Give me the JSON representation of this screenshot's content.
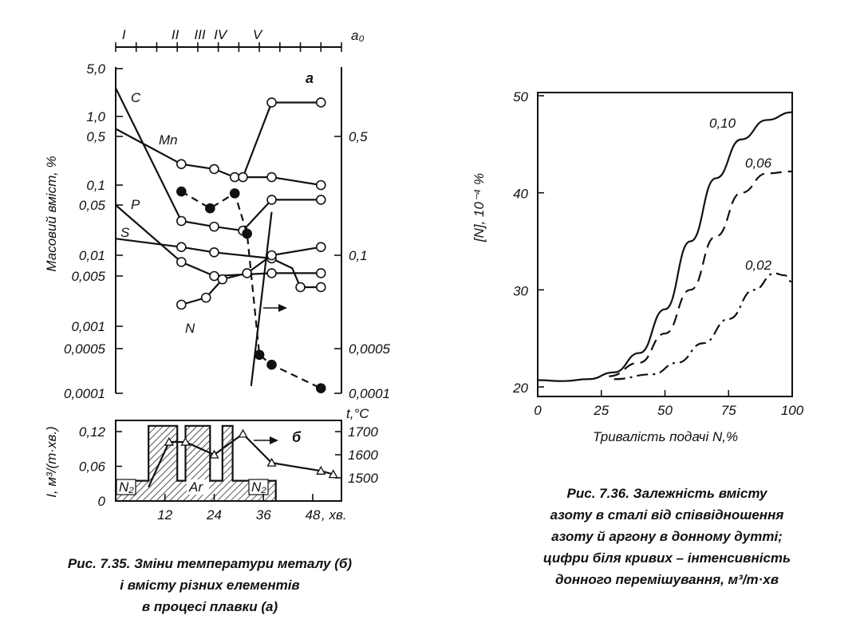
{
  "chart_data": [
    {
      "id": "fig735a",
      "type": "line",
      "panel_label": "а",
      "ylabel": "Масовий вміст, %",
      "top_axis_label": "a₀",
      "stage_labels": [
        "I",
        "II",
        "III",
        "IV",
        "V"
      ],
      "stage_positions": [
        2,
        14.5,
        20.5,
        25.5,
        34.5
      ],
      "left_ticks": [
        "5,0",
        "1,0",
        "0,5",
        "0,1",
        "0,05",
        "0,01",
        "0,005",
        "0,001",
        "0,0005",
        "0,0001"
      ],
      "right_ticks": [
        "0,5",
        "0,1",
        "0,0005",
        "0,0001"
      ],
      "series": [
        {
          "name": "C",
          "style": "solid",
          "marker": "open",
          "points": [
            [
              0,
              2.6
            ],
            [
              16,
              0.03
            ],
            [
              24,
              0.025
            ],
            [
              31,
              0.022
            ],
            [
              38,
              0.06
            ],
            [
              50,
              0.06
            ]
          ]
        },
        {
          "name": "Mn",
          "style": "solid",
          "marker": "open",
          "points": [
            [
              0,
              0.65
            ],
            [
              16,
              0.2
            ],
            [
              24,
              0.17
            ],
            [
              29,
              0.13
            ],
            [
              38,
              0.13
            ],
            [
              50,
              0.1
            ]
          ]
        },
        {
          "name": "P",
          "style": "solid",
          "marker": "open",
          "points": [
            [
              0,
              0.05
            ],
            [
              16,
              0.008
            ],
            [
              24,
              0.005
            ],
            [
              38,
              0.0055
            ],
            [
              50,
              0.0055
            ]
          ]
        },
        {
          "name": "S",
          "style": "solid",
          "marker": "open",
          "points": [
            [
              0,
              0.017
            ],
            [
              16,
              0.013
            ],
            [
              24,
              0.011
            ],
            [
              38,
              0.009
            ],
            [
              43,
              0.0065
            ],
            [
              45,
              0.0035
            ],
            [
              50,
              0.0035
            ]
          ]
        },
        {
          "name": "N",
          "style": "solid",
          "marker": "open",
          "points": [
            [
              16,
              0.002
            ],
            [
              22,
              0.0025
            ],
            [
              26,
              0.0045
            ],
            [
              32,
              0.0055
            ],
            [
              38,
              0.01
            ],
            [
              50,
              0.013
            ]
          ]
        },
        {
          "name": "",
          "style": "solid",
          "marker": "open",
          "points": [
            [
              31,
              0.13
            ],
            [
              38,
              1.6
            ],
            [
              50,
              1.6
            ]
          ]
        },
        {
          "name": "",
          "style": "dashed",
          "marker": "filled",
          "points": [
            [
              16,
              0.08
            ],
            [
              23,
              0.045
            ],
            [
              29,
              0.075
            ],
            [
              32,
              0.02
            ],
            [
              35,
              0.0004
            ],
            [
              38,
              0.00028
            ],
            [
              50,
              0.00012
            ]
          ]
        },
        {
          "name": "",
          "style": "solid",
          "marker": "none",
          "points": [
            [
              33,
              0.00013
            ],
            [
              38,
              0.04
            ]
          ]
        }
      ]
    },
    {
      "id": "fig735b",
      "type": "line",
      "panel_label": "б",
      "xlabel": "хв.",
      "ylabel": "I, м³/(т·хв.)",
      "y2label": "t,°C",
      "x_ticks": [
        "12",
        "24",
        "36",
        "48"
      ],
      "y_ticks": [
        "0",
        "0,06",
        "0,12"
      ],
      "y2_ticks": [
        "1500",
        "1600",
        "1700"
      ],
      "gas_labels": [
        "N₂",
        "Ar",
        "N₂"
      ],
      "flow_levels": [
        [
          0,
          0.035
        ],
        [
          8,
          0.035
        ],
        [
          8,
          0.13
        ],
        [
          15,
          0.13
        ],
        [
          15,
          0.035
        ],
        [
          17,
          0.035
        ],
        [
          17,
          0.13
        ],
        [
          23,
          0.13
        ],
        [
          23,
          0.035
        ],
        [
          26,
          0.035
        ],
        [
          26,
          0.13
        ],
        [
          28.5,
          0.13
        ],
        [
          28.5,
          0.035
        ],
        [
          39,
          0.035
        ],
        [
          39,
          0
        ]
      ],
      "temperature": [
        [
          8,
          1460
        ],
        [
          13,
          1655
        ],
        [
          17,
          1655
        ],
        [
          24,
          1600
        ],
        [
          31,
          1690
        ],
        [
          38,
          1565
        ],
        [
          50,
          1530
        ],
        [
          53,
          1515
        ]
      ]
    },
    {
      "id": "fig736",
      "type": "line",
      "xlabel": "Тривалість подачі  N,%",
      "ylabel": "[N], 10⁻⁴ %",
      "x_ticks": [
        0,
        25,
        50,
        75,
        100
      ],
      "y_ticks": [
        20,
        30,
        40,
        50
      ],
      "xlim": [
        0,
        100
      ],
      "ylim": [
        19,
        50
      ],
      "series": [
        {
          "name": "0,10",
          "style": "solid",
          "points": [
            [
              0,
              20.7
            ],
            [
              10,
              20.6
            ],
            [
              20,
              20.8
            ],
            [
              30,
              21.5
            ],
            [
              40,
              23.5
            ],
            [
              50,
              28
            ],
            [
              60,
              35
            ],
            [
              70,
              41.5
            ],
            [
              80,
              45.5
            ],
            [
              90,
              47.5
            ],
            [
              100,
              48.3
            ]
          ]
        },
        {
          "name": "0,06",
          "style": "dashed",
          "points": [
            [
              28,
              21.1
            ],
            [
              40,
              22.5
            ],
            [
              50,
              25.5
            ],
            [
              60,
              30
            ],
            [
              70,
              35.5
            ],
            [
              80,
              40
            ],
            [
              90,
              42
            ],
            [
              100,
              42.2
            ]
          ]
        },
        {
          "name": "0,02",
          "style": "dashdot",
          "points": [
            [
              30,
              20.8
            ],
            [
              45,
              21.3
            ],
            [
              55,
              22.5
            ],
            [
              65,
              24.5
            ],
            [
              75,
              27
            ],
            [
              85,
              30
            ],
            [
              93,
              31.7
            ],
            [
              97,
              31.5
            ],
            [
              100,
              30.8
            ]
          ]
        }
      ]
    }
  ],
  "captions": {
    "fig735": [
      "Рис. 7.35. Зміни температури металу (б)",
      "і вмісту різних елементів",
      "в процесі плавки (а)"
    ],
    "fig736": [
      "Рис. 7.36. Залежність вмісту",
      "азоту в сталі від співвідношення",
      "азоту й аргону в донному дутті;",
      "цифри біля кривих – інтенсивність",
      "донного перемішування, м³/т·хв"
    ]
  }
}
